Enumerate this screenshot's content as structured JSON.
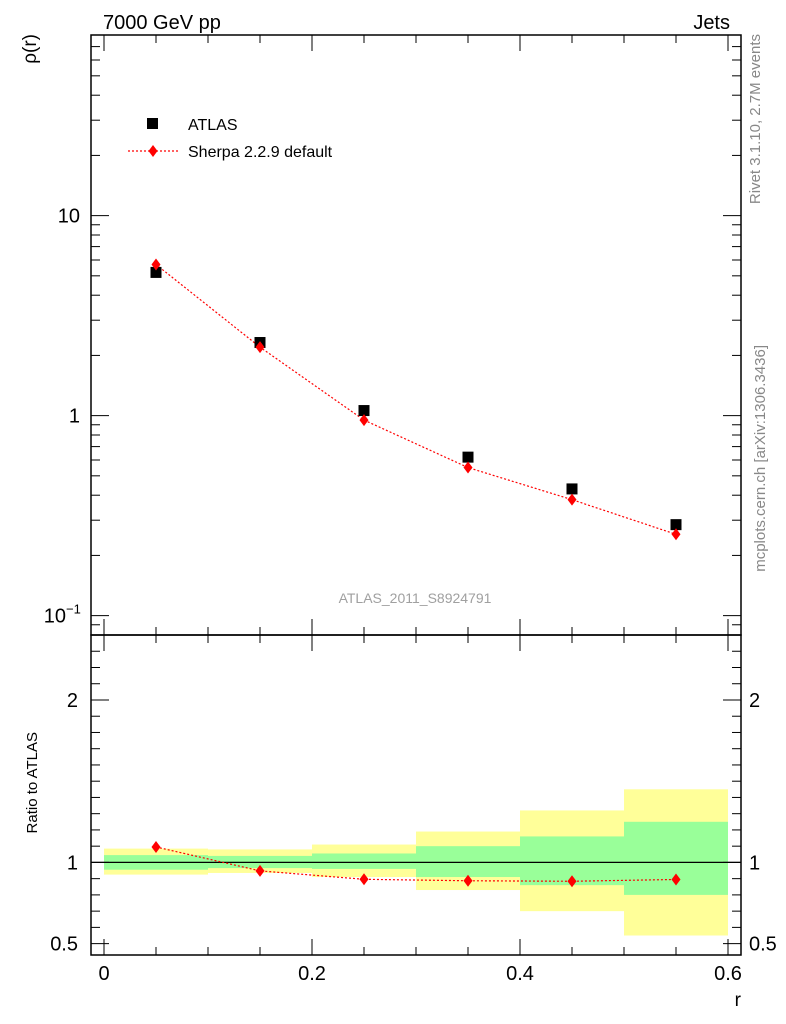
{
  "header": {
    "energy_label": "7000 GeV pp",
    "process_label": "Jets"
  },
  "side_labels": {
    "rivet": "Rivet 3.1.10,  2.7M events",
    "source": "mcplots.cern.ch [arXiv:1306.3436]"
  },
  "analysis_id": "ATLAS_2011_S8924791",
  "colors": {
    "data": "#000000",
    "mc": "#ff0000",
    "band_inner": "#99ff99",
    "band_outer": "#ffff99"
  },
  "chart_data": [
    {
      "type": "scatter",
      "panel": "main",
      "ylabel": "ρ(r)",
      "yscale": "log",
      "ylim": [
        0.08,
        80
      ],
      "xlim": [
        -0.0125,
        0.6125
      ],
      "yticks": [
        {
          "value": 0.1,
          "base": "10",
          "exp": "−1"
        },
        {
          "value": 1,
          "label": "1"
        },
        {
          "value": 10,
          "label": "10"
        }
      ],
      "legend": {
        "position": "top-left"
      },
      "series": [
        {
          "name": "ATLAS",
          "marker": "square",
          "x": [
            0.05,
            0.15,
            0.25,
            0.35,
            0.45,
            0.55
          ],
          "y": [
            5.2,
            2.32,
            1.06,
            0.62,
            0.43,
            0.285
          ]
        },
        {
          "name": "Sherpa 2.2.9 default",
          "marker": "diamond",
          "line": "dotted",
          "x": [
            0.05,
            0.15,
            0.25,
            0.35,
            0.45,
            0.55
          ],
          "y": [
            5.7,
            2.2,
            0.95,
            0.55,
            0.38,
            0.255
          ]
        }
      ]
    },
    {
      "type": "scatter",
      "panel": "ratio",
      "xlabel": "r",
      "ylabel": "Ratio to ATLAS",
      "ylim": [
        0.43,
        2.4
      ],
      "xlim": [
        -0.0125,
        0.6125
      ],
      "xticks": [
        {
          "value": 0,
          "label": "0"
        },
        {
          "value": 0.2,
          "label": "0.2"
        },
        {
          "value": 0.4,
          "label": "0.4"
        },
        {
          "value": 0.6,
          "label": "0.6"
        }
      ],
      "yticks": [
        {
          "value": 0.5,
          "label": "0.5"
        },
        {
          "value": 1,
          "label": "1"
        },
        {
          "value": 2,
          "label": "2"
        }
      ],
      "bands": [
        {
          "x0": 0.0,
          "x1": 0.1,
          "outer": [
            0.925,
            1.085
          ],
          "inner": [
            0.955,
            1.045
          ]
        },
        {
          "x0": 0.1,
          "x1": 0.2,
          "outer": [
            0.935,
            1.08
          ],
          "inner": [
            0.965,
            1.04
          ]
        },
        {
          "x0": 0.2,
          "x1": 0.3,
          "outer": [
            0.91,
            1.11
          ],
          "inner": [
            0.96,
            1.055
          ]
        },
        {
          "x0": 0.3,
          "x1": 0.4,
          "outer": [
            0.83,
            1.19
          ],
          "inner": [
            0.91,
            1.1
          ]
        },
        {
          "x0": 0.4,
          "x1": 0.5,
          "outer": [
            0.7,
            1.32
          ],
          "inner": [
            0.86,
            1.16
          ]
        },
        {
          "x0": 0.5,
          "x1": 0.6,
          "outer": [
            0.55,
            1.45
          ],
          "inner": [
            0.8,
            1.25
          ]
        }
      ],
      "series": [
        {
          "name": "Sherpa 2.2.9 default",
          "marker": "diamond",
          "line": "dotted",
          "x": [
            0.05,
            0.15,
            0.25,
            0.35,
            0.45,
            0.55
          ],
          "y": [
            1.095,
            0.948,
            0.896,
            0.887,
            0.884,
            0.895
          ]
        }
      ]
    }
  ]
}
